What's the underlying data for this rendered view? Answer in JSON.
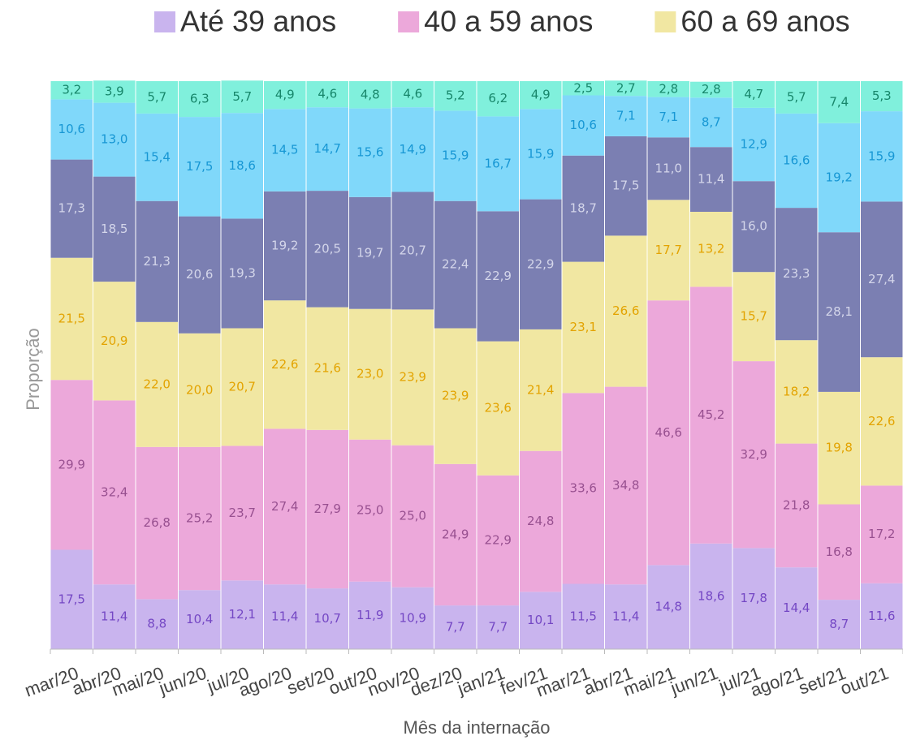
{
  "chart_data": {
    "type": "stacked_bar",
    "xlabel": "Mês da internação",
    "ylabel": "Proporção",
    "ylim": [
      0,
      100
    ],
    "categories": [
      "mar/20",
      "abr/20",
      "mai/20",
      "jun/20",
      "jul/20",
      "ago/20",
      "set/20",
      "out/20",
      "nov/20",
      "dez/20",
      "jan/21",
      "fev/21",
      "mar/21",
      "abr/21",
      "mai/21",
      "jun/21",
      "jul/21",
      "ago/21",
      "set/21",
      "out/21"
    ],
    "series": [
      {
        "name": "Até 39 anos",
        "color": "#c9b4ee",
        "label_color": "#7447c4",
        "values": [
          17.5,
          11.4,
          8.8,
          10.4,
          12.1,
          11.4,
          10.7,
          11.9,
          10.9,
          7.7,
          7.7,
          10.1,
          11.5,
          11.4,
          14.8,
          18.6,
          17.8,
          14.4,
          8.7,
          11.6
        ],
        "value_labels": [
          "17,5",
          "11,4",
          "8,8",
          "10,4",
          "12,1",
          "11,4",
          "10,7",
          "11,9",
          "10,9",
          "7,7",
          "7,7",
          "10,1",
          "11,5",
          "11,4",
          "14,8",
          "18,6",
          "17,8",
          "14,4",
          "8,7",
          "11,6"
        ]
      },
      {
        "name": "40 a 59 anos",
        "color": "#eca8da",
        "label_color": "#985090",
        "values": [
          29.9,
          32.4,
          26.8,
          25.2,
          23.7,
          27.4,
          27.9,
          25.0,
          25.0,
          24.9,
          22.9,
          24.8,
          33.6,
          34.8,
          46.6,
          45.2,
          32.9,
          21.8,
          16.8,
          17.2
        ],
        "value_labels": [
          "29,9",
          "32,4",
          "26,8",
          "25,2",
          "23,7",
          "27,4",
          "27,9",
          "25,0",
          "25,0",
          "24,9",
          "22,9",
          "24,8",
          "33,6",
          "34,8",
          "46,6",
          "45,2",
          "32,9",
          "21,8",
          "16,8",
          "17,2"
        ]
      },
      {
        "name": "60 a 69 anos",
        "color": "#f1e7a2",
        "label_color": "#e3a300",
        "values": [
          21.5,
          20.9,
          22.0,
          20.0,
          20.7,
          22.6,
          21.6,
          23.0,
          23.9,
          23.9,
          23.6,
          21.4,
          23.1,
          26.6,
          17.7,
          13.2,
          15.7,
          18.2,
          19.8,
          22.6
        ],
        "value_labels": [
          "21,5",
          "20,9",
          "22,0",
          "20,0",
          "20,7",
          "22,6",
          "21,6",
          "23,0",
          "23,9",
          "23,9",
          "23,6",
          "21,4",
          "23,1",
          "26,6",
          "17,7",
          "13,2",
          "15,7",
          "18,2",
          "19,8",
          "22,6"
        ]
      },
      {
        "color": "#7b7fb2",
        "label_color": "#d4d6ea",
        "values": [
          17.3,
          18.5,
          21.3,
          20.6,
          19.3,
          19.2,
          20.5,
          19.7,
          20.7,
          22.4,
          22.9,
          22.9,
          18.7,
          17.5,
          11.0,
          11.4,
          16.0,
          23.3,
          28.1,
          27.4
        ],
        "value_labels": [
          "17,3",
          "18,5",
          "21,3",
          "20,6",
          "19,3",
          "19,2",
          "20,5",
          "19,7",
          "20,7",
          "22,4",
          "22,9",
          "22,9",
          "18,7",
          "17,5",
          "11,0",
          "11,4",
          "16,0",
          "23,3",
          "28,1",
          "27,4"
        ]
      },
      {
        "color": "#80d8fa",
        "label_color": "#1797d4",
        "values": [
          10.6,
          13.0,
          15.4,
          17.5,
          18.6,
          14.5,
          14.7,
          15.6,
          14.9,
          15.9,
          16.7,
          15.9,
          10.6,
          7.1,
          7.1,
          8.7,
          12.9,
          16.6,
          19.2,
          15.9
        ],
        "value_labels": [
          "10,6",
          "13,0",
          "15,4",
          "17,5",
          "18,6",
          "14,5",
          "14,7",
          "15,6",
          "14,9",
          "15,9",
          "16,7",
          "15,9",
          "10,6",
          "7,1",
          "7,1",
          "8,7",
          "12,9",
          "16,6",
          "19,2",
          "15,9"
        ]
      },
      {
        "color": "#80f0dc",
        "label_color": "#17866a",
        "values": [
          3.2,
          3.9,
          5.7,
          6.3,
          5.7,
          4.9,
          4.6,
          4.8,
          4.6,
          5.2,
          6.2,
          4.9,
          2.5,
          2.7,
          2.8,
          2.8,
          4.7,
          5.7,
          7.4,
          5.3
        ],
        "value_labels": [
          "3,2",
          "3,9",
          "5,7",
          "6,3",
          "5,7",
          "4,9",
          "4,6",
          "4,8",
          "4,6",
          "5,2",
          "6,2",
          "4,9",
          "2,5",
          "2,7",
          "2,8",
          "2,8",
          "4,7",
          "5,7",
          "7,4",
          "5,3"
        ]
      }
    ]
  }
}
